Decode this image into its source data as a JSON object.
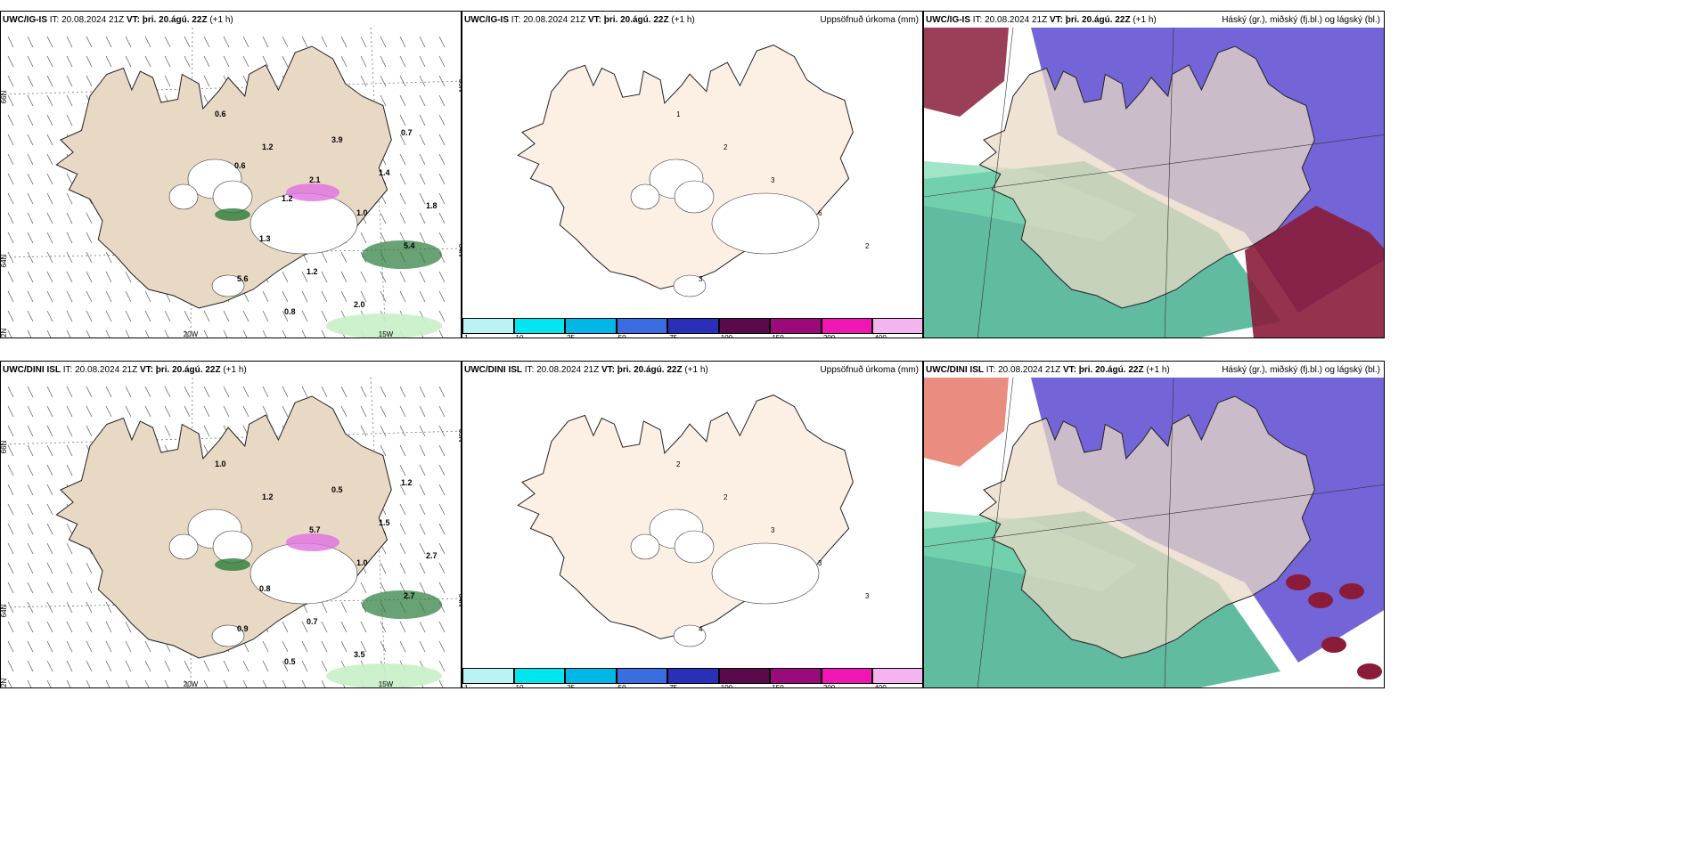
{
  "panels": [
    {
      "model": "UWC/IG-IS",
      "it_label": "IT:",
      "it_value": "20.08.2024 21Z",
      "vt_label": "VT:",
      "vt_value": "þri. 20.ágú. 22Z",
      "lead": "(+1 h)",
      "right_title": "",
      "kind": "wind",
      "lat_labels": [
        "66N",
        "64N",
        "62N"
      ],
      "lon_labels": [
        "20W",
        "15W"
      ],
      "right_lat": [
        "65N",
        "64N"
      ],
      "values": [
        "0.6",
        "1.2",
        "2.1",
        "1.0",
        "5.4",
        "5.6",
        "0.8",
        "3.9",
        "1.4",
        "1.8",
        "1.3",
        "1.2",
        "2.0",
        "0.7",
        "0.6",
        "1.2"
      ]
    },
    {
      "model": "UWC/IG-IS",
      "it_label": "IT:",
      "it_value": "20.08.2024 21Z",
      "vt_label": "VT:",
      "vt_value": "þri. 20.ágú. 22Z",
      "lead": "(+1 h)",
      "right_title": "Uppsöfnuð úrkoma (mm)",
      "kind": "precip",
      "values": [
        "1",
        "2",
        "3",
        "6",
        "2",
        "3"
      ]
    },
    {
      "model": "UWC/IG-IS",
      "it_label": "IT:",
      "it_value": "20.08.2024 21Z",
      "vt_label": "VT:",
      "vt_value": "þri. 20.ágú. 22Z",
      "lead": "(+1 h)",
      "right_title": "Háský (gr.), miðský (fj.bl.) og lágský (bl.)",
      "kind": "cloud"
    },
    {
      "model": "UWC/DINI ISL",
      "it_label": "IT:",
      "it_value": "20.08.2024 21Z",
      "vt_label": "VT:",
      "vt_value": "þri. 20.ágú. 22Z",
      "lead": "(+1 h)",
      "right_title": "",
      "kind": "wind",
      "lat_labels": [
        "66N",
        "64N",
        "62N"
      ],
      "lon_labels": [
        "20W",
        "15W"
      ],
      "right_lat": [
        "65N",
        "64N"
      ],
      "values": [
        "1.0",
        "1.2",
        "5.7",
        "1.0",
        "2.7",
        "0.9",
        "0.5",
        "0.5",
        "1.5",
        "2.7",
        "0.8",
        "0.7",
        "3.5",
        "1.2"
      ]
    },
    {
      "model": "UWC/DINI ISL",
      "it_label": "IT:",
      "it_value": "20.08.2024 21Z",
      "vt_label": "VT:",
      "vt_value": "þri. 20.ágú. 22Z",
      "lead": "(+1 h)",
      "right_title": "Uppsöfnuð úrkoma (mm)",
      "kind": "precip",
      "values": [
        "2",
        "2",
        "3",
        "3",
        "3",
        "4"
      ]
    },
    {
      "model": "UWC/DINI ISL",
      "it_label": "IT:",
      "it_value": "20.08.2024 21Z",
      "vt_label": "VT:",
      "vt_value": "þri. 20.ágú. 22Z",
      "lead": "(+1 h)",
      "right_title": "Háský (gr.), miðský (fj.bl.) og lágský (bl.)",
      "kind": "cloud"
    }
  ],
  "colorbar": {
    "ticks": [
      "1",
      "10",
      "25",
      "50",
      "75",
      "100",
      "150",
      "200",
      "400"
    ],
    "colors": [
      "#b8f4f4",
      "#00e6f0",
      "#00b8e6",
      "#3a6ee0",
      "#2a2fb8",
      "#5a0a4a",
      "#9a0a7a",
      "#f016b4",
      "#f4b4f0"
    ]
  },
  "colors": {
    "land": "#e8d9c5",
    "land_precip": "#fcf0e4",
    "coast": "#222222",
    "precip_green_light": "#c6f0c6",
    "precip_green_dark": "#2a7a3a",
    "precip_pink": "#e070e0",
    "cloud_high_red": "#8a1c3a",
    "cloud_mid_blue": "#5a4ad0",
    "cloud_low_teal": "#3aaa8a",
    "cloud_green": "#7ad8b0"
  }
}
